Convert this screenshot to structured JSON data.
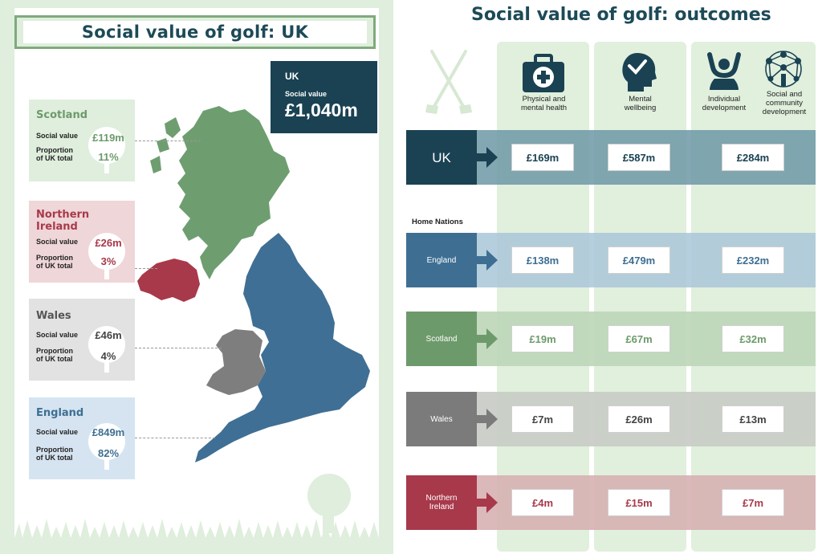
{
  "left_panel": {
    "title": "Social value of golf: UK",
    "uk_total": {
      "label": "UK",
      "sv_label": "Social value",
      "value": "£1,040m"
    },
    "nations": [
      {
        "name": "Scotland",
        "sv_label": "Social value",
        "value": "£119m",
        "prop_label_1": "Proportion",
        "prop_label_2": "of UK total",
        "proportion": "11%",
        "color": "#6d9a6b",
        "bg": "#dfeedd"
      },
      {
        "name": "Northern Ireland",
        "sv_label": "Social value",
        "value": "£26m",
        "prop_label_1": "Proportion",
        "prop_label_2": "of UK total",
        "proportion": "3%",
        "color": "#a8394a",
        "bg": "#efd6d8"
      },
      {
        "name": "Wales",
        "sv_label": "Social value",
        "value": "£46m",
        "prop_label_1": "Proportion",
        "prop_label_2": "of UK total",
        "proportion": "4%",
        "color": "#555555",
        "bg": "#e2e2e2"
      },
      {
        "name": "England",
        "sv_label": "Social value",
        "value": "£849m",
        "prop_label_1": "Proportion",
        "prop_label_2": "of UK total",
        "proportion": "82%",
        "color": "#3e6f93",
        "bg": "#d5e4f0"
      }
    ],
    "map_colors": {
      "scotland": "#6e9e70",
      "northern_ireland": "#a8394a",
      "wales": "#7e7e7e",
      "england": "#3f6f94"
    }
  },
  "right_panel": {
    "title": "Social value of golf: outcomes",
    "columns": [
      {
        "label_1": "Physical and",
        "label_2": "mental health",
        "icon": "first-aid-kit-icon"
      },
      {
        "label_1": "Mental",
        "label_2": "wellbeing",
        "icon": "head-check-icon"
      },
      {
        "label_1": "Individual",
        "label_2": "development",
        "icon": "person-arms-up-icon"
      },
      {
        "label_1": "Social and",
        "label_2": "community",
        "label_3": "development",
        "icon": "network-people-icon"
      }
    ],
    "home_nations_label": "Home Nations",
    "rows": [
      {
        "label": "UK",
        "values": [
          "£169m",
          "£587m",
          "£284m"
        ],
        "color": "#1a4253",
        "band": "#6d98a6",
        "text_color": "#1a4253"
      },
      {
        "label": "England",
        "values": [
          "£138m",
          "£479m",
          "£232m"
        ],
        "color": "#3e6f93",
        "band": "#a9c7d8",
        "text_color": "#3e6f93"
      },
      {
        "label": "Scotland",
        "values": [
          "£19m",
          "£67m",
          "£32m"
        ],
        "color": "#6d9a6b",
        "band": "#bcd6b8",
        "text_color": "#6d9a6b"
      },
      {
        "label": "Wales",
        "values": [
          "£7m",
          "£26m",
          "£13m"
        ],
        "color": "#7b7b7b",
        "band": "#c8cbc4",
        "text_color": "#444444"
      },
      {
        "label_1": "Northern",
        "label_2": "Ireland",
        "label": "Northern Ireland",
        "values": [
          "£4m",
          "£15m",
          "£7m"
        ],
        "color": "#a8394a",
        "band": "#d7b0b3",
        "text_color": "#a8394a"
      }
    ]
  }
}
